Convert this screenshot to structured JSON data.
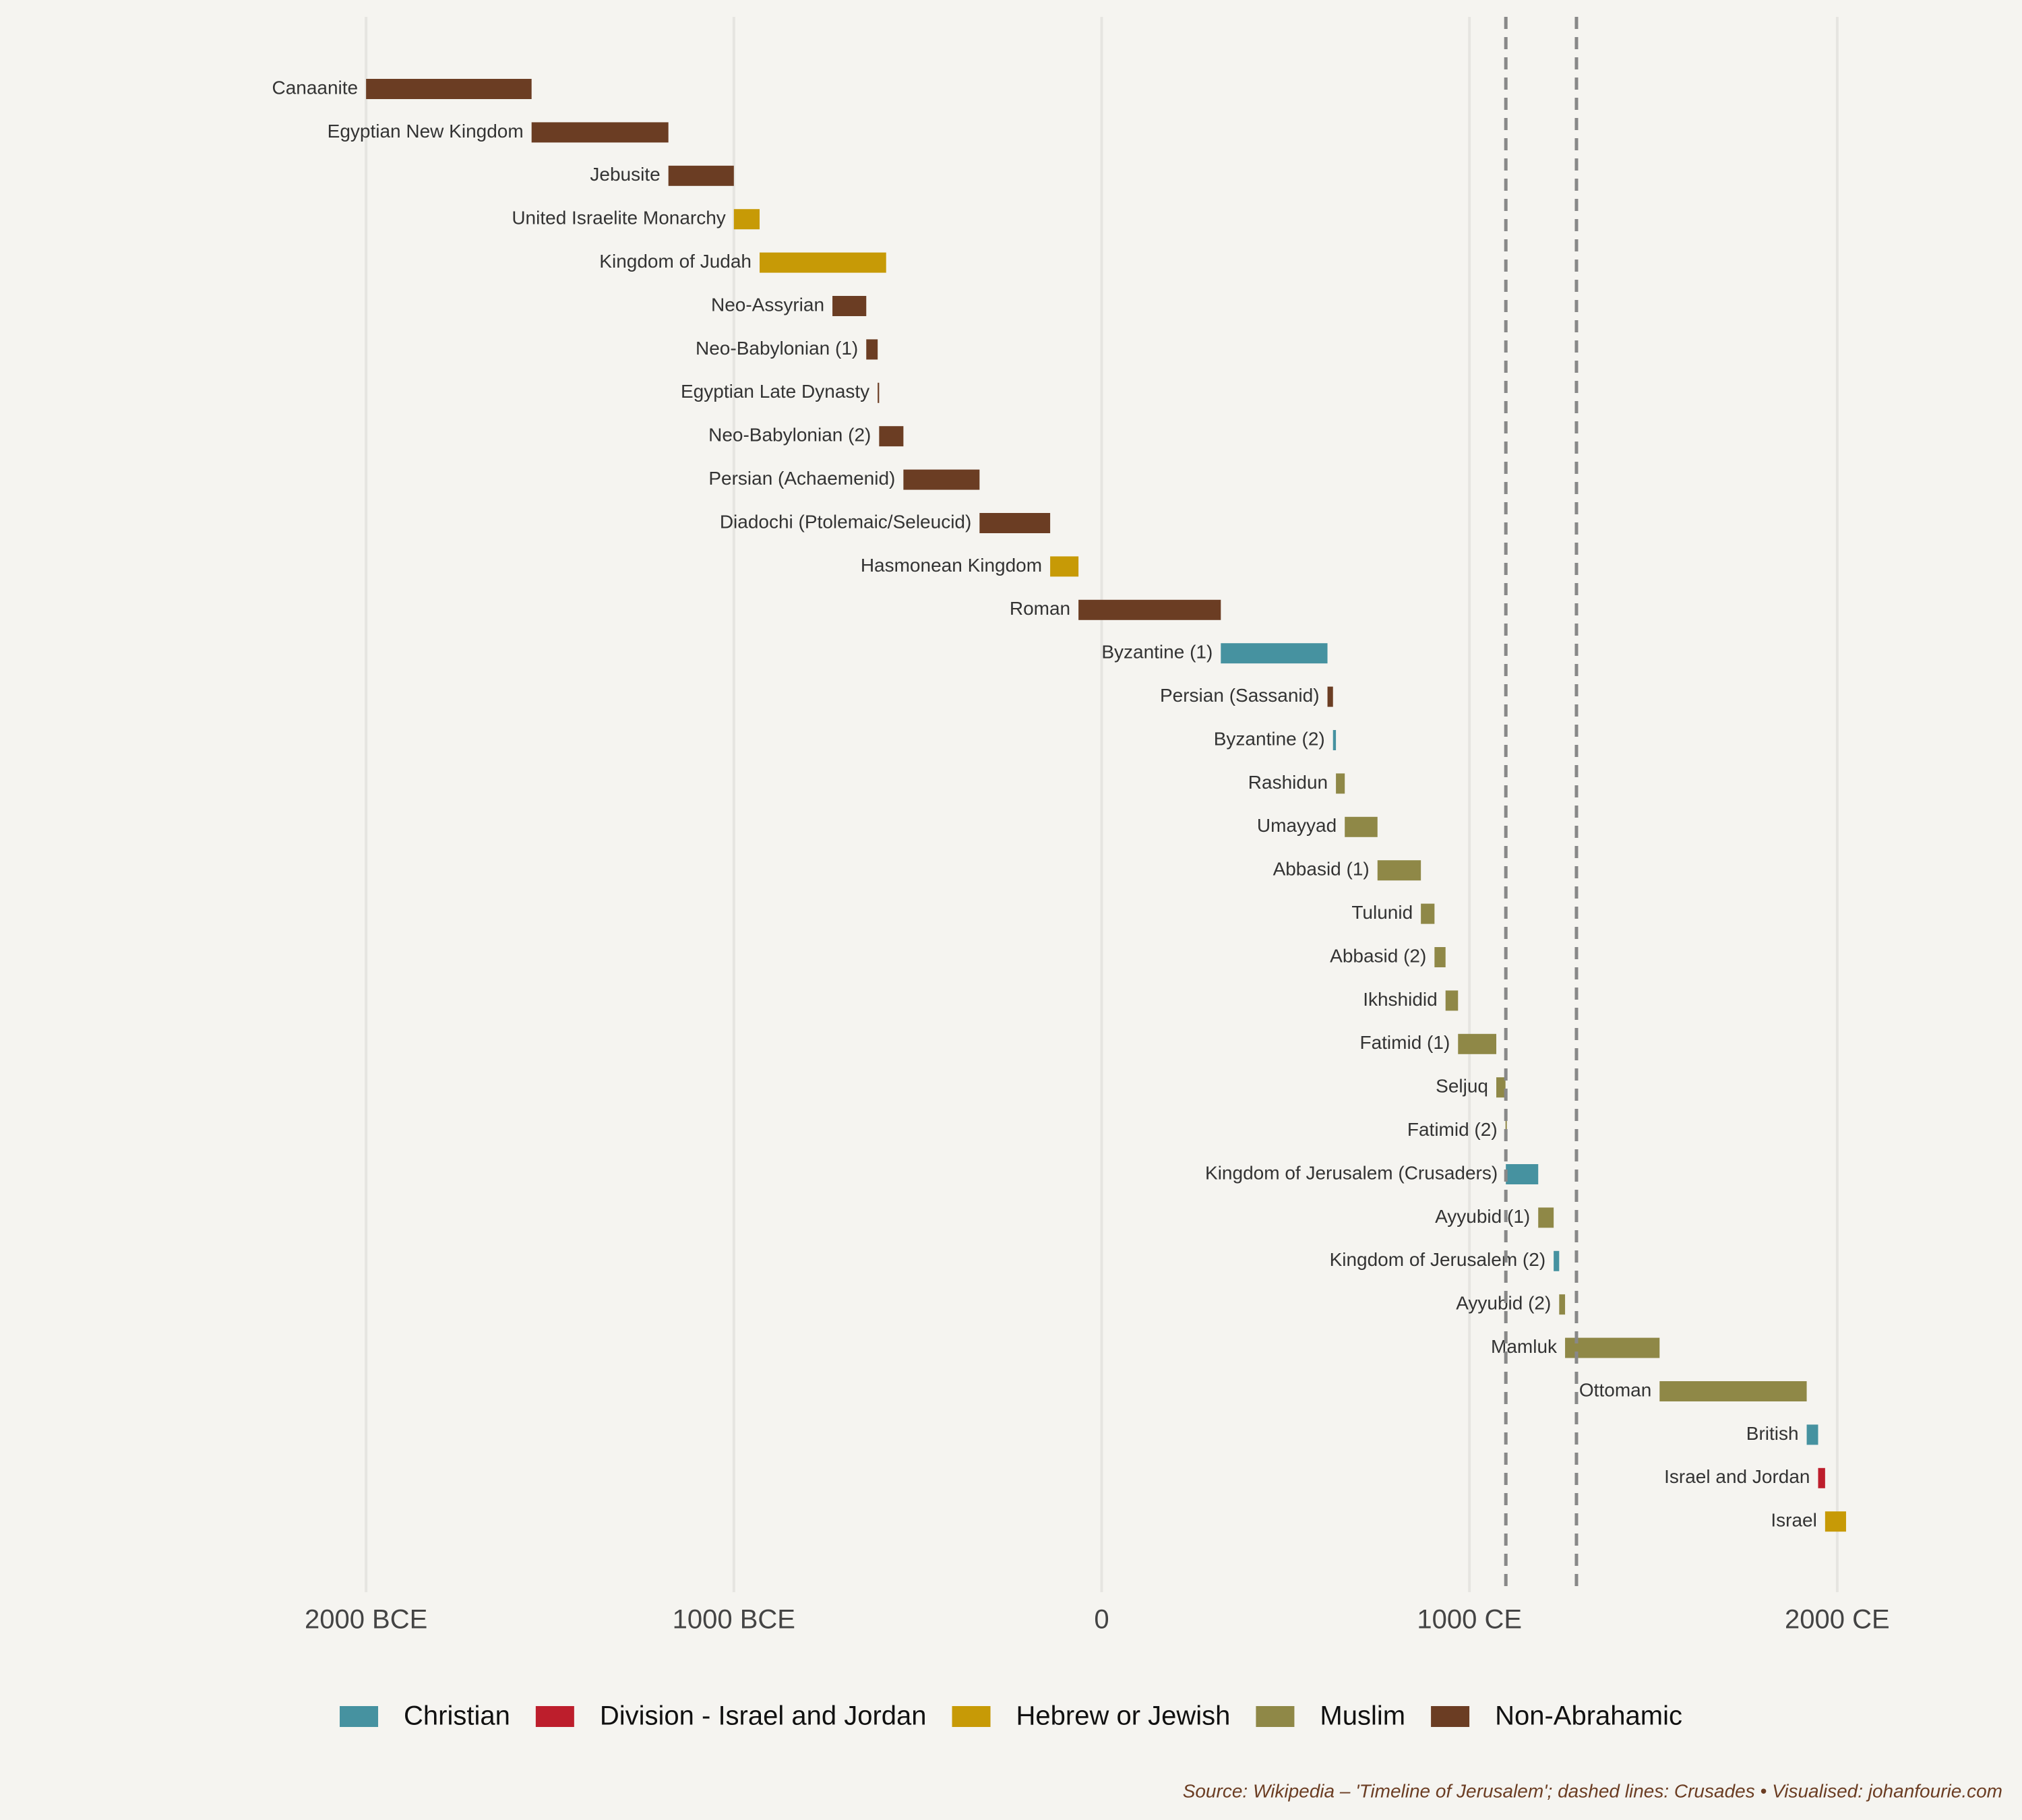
{
  "chart_data": {
    "type": "range-bar",
    "source": "Source: Wikipedia – 'Timeline of Jerusalem'; dashed lines: Crusades • Visualised: johanfourie.com",
    "series": [
      {
        "name": "Christian",
        "color": "#4692a0"
      },
      {
        "name": "Division - Israel and Jordan",
        "color": "#bd1e2c"
      },
      {
        "name": "Hebrew or Jewish",
        "color": "#c79a06"
      },
      {
        "name": "Muslim",
        "color": "#8f8847"
      },
      {
        "name": "Non-Abrahamic",
        "color": "#6b3d23"
      }
    ],
    "bars": [
      {
        "label": "Canaanite",
        "start": -2000,
        "end": -1550,
        "group": "Non-Abrahamic"
      },
      {
        "label": "Egyptian New Kingdom",
        "start": -1550,
        "end": -1178,
        "group": "Non-Abrahamic"
      },
      {
        "label": "Jebusite",
        "start": -1178,
        "end": -1000,
        "group": "Non-Abrahamic"
      },
      {
        "label": "United Israelite Monarchy",
        "start": -1000,
        "end": -930,
        "group": "Hebrew or Jewish"
      },
      {
        "label": "Kingdom of Judah",
        "start": -930,
        "end": -586,
        "group": "Hebrew or Jewish"
      },
      {
        "label": "Neo-Assyrian",
        "start": -732,
        "end": -640,
        "group": "Non-Abrahamic"
      },
      {
        "label": "Neo-Babylonian (1)",
        "start": -640,
        "end": -609,
        "group": "Non-Abrahamic"
      },
      {
        "label": "Egyptian Late Dynasty",
        "start": -609,
        "end": -605,
        "group": "Non-Abrahamic"
      },
      {
        "label": "Neo-Babylonian (2)",
        "start": -605,
        "end": -539,
        "group": "Non-Abrahamic"
      },
      {
        "label": "Persian (Achaemenid)",
        "start": -539,
        "end": -332,
        "group": "Non-Abrahamic"
      },
      {
        "label": "Diadochi (Ptolemaic/Seleucid)",
        "start": -332,
        "end": -140,
        "group": "Non-Abrahamic"
      },
      {
        "label": "Hasmonean Kingdom",
        "start": -140,
        "end": -63,
        "group": "Hebrew or Jewish"
      },
      {
        "label": "Roman",
        "start": -63,
        "end": 324,
        "group": "Non-Abrahamic"
      },
      {
        "label": "Byzantine (1)",
        "start": 324,
        "end": 614,
        "group": "Christian"
      },
      {
        "label": "Persian (Sassanid)",
        "start": 614,
        "end": 629,
        "group": "Non-Abrahamic"
      },
      {
        "label": "Byzantine (2)",
        "start": 629,
        "end": 637,
        "group": "Christian"
      },
      {
        "label": "Rashidun",
        "start": 637,
        "end": 661,
        "group": "Muslim"
      },
      {
        "label": "Umayyad",
        "start": 661,
        "end": 750,
        "group": "Muslim"
      },
      {
        "label": "Abbasid (1)",
        "start": 750,
        "end": 868,
        "group": "Muslim"
      },
      {
        "label": "Tulunid",
        "start": 868,
        "end": 905,
        "group": "Muslim"
      },
      {
        "label": "Abbasid (2)",
        "start": 905,
        "end": 935,
        "group": "Muslim"
      },
      {
        "label": "Ikhshidid",
        "start": 935,
        "end": 969,
        "group": "Muslim"
      },
      {
        "label": "Fatimid (1)",
        "start": 969,
        "end": 1073,
        "group": "Muslim"
      },
      {
        "label": "Seljuq",
        "start": 1073,
        "end": 1098,
        "group": "Muslim"
      },
      {
        "label": "Fatimid (2)",
        "start": 1098,
        "end": 1099,
        "group": "Muslim"
      },
      {
        "label": "Kingdom of Jerusalem (Crusaders)",
        "start": 1099,
        "end": 1187,
        "group": "Christian"
      },
      {
        "label": "Ayyubid (1)",
        "start": 1187,
        "end": 1229,
        "group": "Muslim"
      },
      {
        "label": "Kingdom of Jerusalem (2)",
        "start": 1229,
        "end": 1244,
        "group": "Christian"
      },
      {
        "label": "Ayyubid (2)",
        "start": 1244,
        "end": 1260,
        "group": "Muslim"
      },
      {
        "label": "Mamluk",
        "start": 1260,
        "end": 1517,
        "group": "Muslim"
      },
      {
        "label": "Ottoman",
        "start": 1517,
        "end": 1917,
        "group": "Muslim"
      },
      {
        "label": "British",
        "start": 1917,
        "end": 1948,
        "group": "Christian"
      },
      {
        "label": "Israel and Jordan",
        "start": 1948,
        "end": 1967,
        "group": "Division - Israel and Jordan"
      },
      {
        "label": "Israel",
        "start": 1967,
        "end": 2024,
        "group": "Hebrew or Jewish"
      }
    ],
    "vlines": [
      1099,
      1291
    ],
    "xlim": [
      -2200,
      2200
    ],
    "xticks": [
      {
        "value": -2000,
        "label": "2000 BCE"
      },
      {
        "value": -1000,
        "label": "1000 BCE"
      },
      0,
      {
        "value": 1000,
        "label": "1000 CE"
      },
      {
        "value": 2000,
        "label": "2000 CE"
      }
    ],
    "grid": true
  }
}
